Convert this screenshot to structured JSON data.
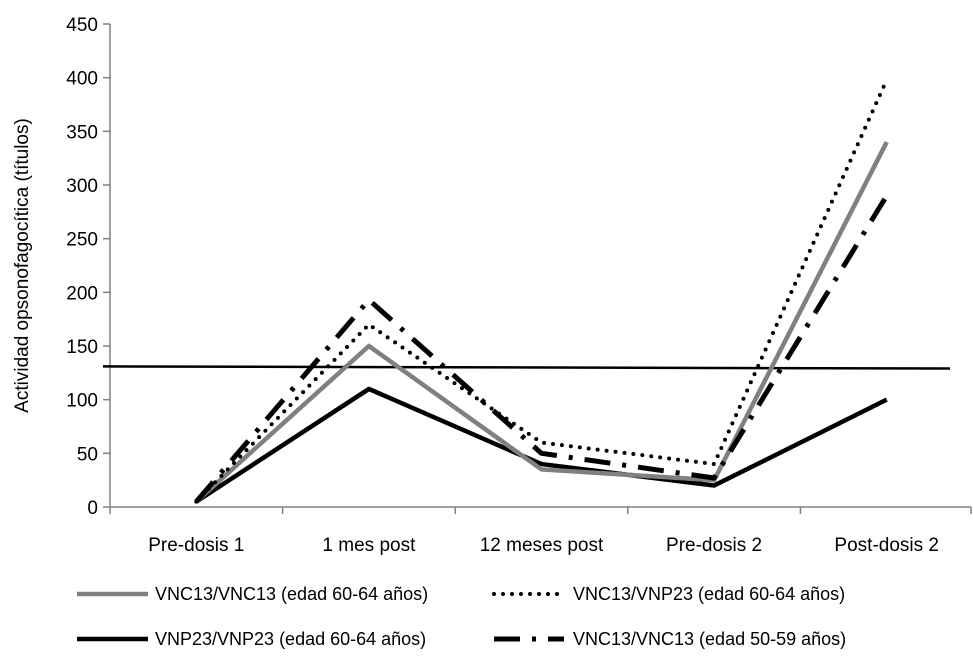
{
  "chart_data": {
    "type": "line",
    "title": "",
    "xlabel": "",
    "ylabel": "Actividad opsonofagocítica (títulos)",
    "categories": [
      "Pre-dosis 1",
      "1 mes post",
      "12 meses post",
      "Pre-dosis 2",
      "Post-dosis 2"
    ],
    "ylim": [
      0,
      450
    ],
    "yticks": [
      0,
      50,
      100,
      150,
      200,
      250,
      300,
      350,
      400,
      450
    ],
    "grid": false,
    "legend_position": "bottom",
    "series": [
      {
        "name": "VNC13/VNC13 (edad 60-64 años)",
        "values": [
          5,
          150,
          35,
          25,
          340
        ],
        "color": "#808080",
        "style": "solid"
      },
      {
        "name": "VNC13/VNP23 (edad 60-64 años)",
        "values": [
          5,
          170,
          60,
          40,
          398
        ],
        "color": "#000000",
        "style": "dotted"
      },
      {
        "name": "VNP23/VNP23 (edad 60-64 años)",
        "values": [
          5,
          110,
          40,
          20,
          100
        ],
        "color": "#000000",
        "style": "solid"
      },
      {
        "name": "VNC13/VNC13 (edad 50-59 años)",
        "values": [
          5,
          193,
          50,
          27,
          290
        ],
        "color": "#000000",
        "style": "dashdot"
      }
    ],
    "reference_line": {
      "y_start": 131,
      "y_end": 129,
      "color": "#000000"
    }
  }
}
